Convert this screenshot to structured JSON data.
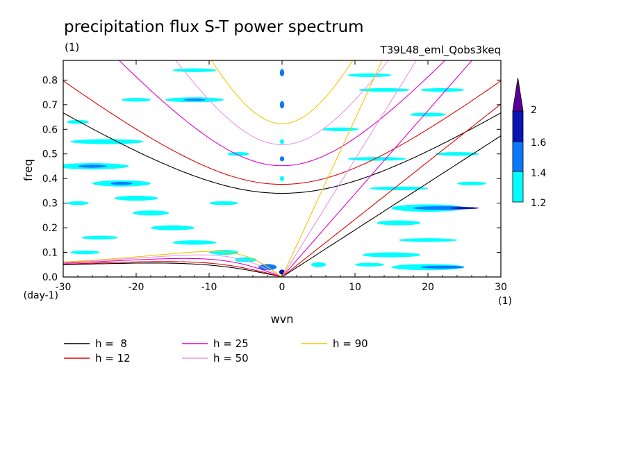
{
  "chart_data": {
    "type": "heatmap",
    "title": "precipitation flux S-T power spectrum",
    "subtitle_left": "(1)",
    "subtitle_right": "T39L48_eml_Qobs3keq",
    "xlabel": "wvn",
    "ylabel": "freq",
    "x_unit": "(1)",
    "y_unit": "(day-1)",
    "xlim": [
      -30,
      30
    ],
    "ylim": [
      0,
      0.88
    ],
    "x_ticks": [
      -30,
      -20,
      -10,
      0,
      10,
      20,
      30
    ],
    "x_tick_labels": [
      "-30",
      "-20",
      "-10",
      "0",
      "10",
      "20",
      "30"
    ],
    "y_ticks": [
      0,
      0.1,
      0.2,
      0.3,
      0.4,
      0.5,
      0.6,
      0.7,
      0.8
    ],
    "y_tick_labels": [
      "0.0",
      "0.1",
      "0.2",
      "0.3",
      "0.4",
      "0.5",
      "0.6",
      "0.7",
      "0.8"
    ],
    "colorbar": {
      "levels": [
        1.2,
        1.4,
        1.6,
        2
      ],
      "labels": [
        "1.2",
        "1.4",
        "1.6",
        "2"
      ],
      "colors": [
        "#00ffff",
        "#0a78ff",
        "#0a14b4",
        "#5a0096"
      ]
    },
    "contour_regions": [
      {
        "x": 0,
        "y": 0.02,
        "w": 0.8,
        "h": 0.02,
        "level": 3
      },
      {
        "x": -2,
        "y": 0.04,
        "w": 2.5,
        "h": 0.025,
        "level": 2
      },
      {
        "x": -5,
        "y": 0.07,
        "w": 3,
        "h": 0.02,
        "level": 1
      },
      {
        "x": -8,
        "y": 0.1,
        "w": 4,
        "h": 0.02,
        "level": 1
      },
      {
        "x": -12,
        "y": 0.14,
        "w": 6,
        "h": 0.018,
        "level": 1
      },
      {
        "x": -15,
        "y": 0.2,
        "w": 6,
        "h": 0.02,
        "level": 1
      },
      {
        "x": -18,
        "y": 0.26,
        "w": 5,
        "h": 0.02,
        "level": 1
      },
      {
        "x": -20,
        "y": 0.32,
        "w": 6,
        "h": 0.02,
        "level": 1
      },
      {
        "x": -22,
        "y": 0.38,
        "w": 8,
        "h": 0.025,
        "level": 1
      },
      {
        "x": -22,
        "y": 0.38,
        "w": 3,
        "h": 0.012,
        "level": 2
      },
      {
        "x": -26,
        "y": 0.45,
        "w": 10,
        "h": 0.025,
        "level": 1
      },
      {
        "x": -26,
        "y": 0.45,
        "w": 4,
        "h": 0.012,
        "level": 2
      },
      {
        "x": -24,
        "y": 0.55,
        "w": 10,
        "h": 0.02,
        "level": 1
      },
      {
        "x": -12,
        "y": 0.72,
        "w": 8,
        "h": 0.02,
        "level": 1
      },
      {
        "x": -12,
        "y": 0.72,
        "w": 3,
        "h": 0.01,
        "level": 2
      },
      {
        "x": -20,
        "y": 0.72,
        "w": 4,
        "h": 0.015,
        "level": 1
      },
      {
        "x": -27,
        "y": 0.1,
        "w": 4,
        "h": 0.015,
        "level": 1
      },
      {
        "x": -25,
        "y": 0.16,
        "w": 5,
        "h": 0.015,
        "level": 1
      },
      {
        "x": -12,
        "y": 0.84,
        "w": 6,
        "h": 0.015,
        "level": 1
      },
      {
        "x": 0,
        "y": 0.83,
        "w": 0.6,
        "h": 0.03,
        "level": 2
      },
      {
        "x": 0,
        "y": 0.7,
        "w": 0.6,
        "h": 0.03,
        "level": 2
      },
      {
        "x": 0,
        "y": 0.55,
        "w": 0.6,
        "h": 0.02,
        "level": 1
      },
      {
        "x": 0,
        "y": 0.48,
        "w": 0.6,
        "h": 0.02,
        "level": 2
      },
      {
        "x": 0,
        "y": 0.4,
        "w": 0.6,
        "h": 0.02,
        "level": 1
      },
      {
        "x": 12,
        "y": 0.82,
        "w": 6,
        "h": 0.015,
        "level": 1
      },
      {
        "x": 14,
        "y": 0.76,
        "w": 7,
        "h": 0.015,
        "level": 1
      },
      {
        "x": 8,
        "y": 0.6,
        "w": 5,
        "h": 0.015,
        "level": 1
      },
      {
        "x": 22,
        "y": 0.76,
        "w": 6,
        "h": 0.015,
        "level": 1
      },
      {
        "x": 20,
        "y": 0.66,
        "w": 5,
        "h": 0.015,
        "level": 1
      },
      {
        "x": 13,
        "y": 0.48,
        "w": 8,
        "h": 0.015,
        "level": 1
      },
      {
        "x": 24,
        "y": 0.5,
        "w": 6,
        "h": 0.015,
        "level": 1
      },
      {
        "x": 16,
        "y": 0.36,
        "w": 8,
        "h": 0.015,
        "level": 1
      },
      {
        "x": 26,
        "y": 0.38,
        "w": 4,
        "h": 0.015,
        "level": 1
      },
      {
        "x": 20,
        "y": 0.28,
        "w": 10,
        "h": 0.03,
        "level": 1
      },
      {
        "x": 22,
        "y": 0.28,
        "w": 8,
        "h": 0.015,
        "level": 2
      },
      {
        "x": 25,
        "y": 0.28,
        "w": 4,
        "h": 0.008,
        "level": 3
      },
      {
        "x": 16,
        "y": 0.22,
        "w": 6,
        "h": 0.02,
        "level": 1
      },
      {
        "x": 20,
        "y": 0.15,
        "w": 8,
        "h": 0.015,
        "level": 1
      },
      {
        "x": 15,
        "y": 0.09,
        "w": 8,
        "h": 0.02,
        "level": 1
      },
      {
        "x": 20,
        "y": 0.04,
        "w": 10,
        "h": 0.025,
        "level": 1
      },
      {
        "x": 22,
        "y": 0.04,
        "w": 6,
        "h": 0.012,
        "level": 2
      },
      {
        "x": 12,
        "y": 0.05,
        "w": 4,
        "h": 0.015,
        "level": 1
      },
      {
        "x": 5,
        "y": 0.05,
        "w": 2,
        "h": 0.02,
        "level": 1
      },
      {
        "x": -28,
        "y": 0.63,
        "w": 3,
        "h": 0.015,
        "level": 1
      },
      {
        "x": -28,
        "y": 0.3,
        "w": 3,
        "h": 0.015,
        "level": 1
      },
      {
        "x": -8,
        "y": 0.3,
        "w": 4,
        "h": 0.015,
        "level": 1
      },
      {
        "x": -6,
        "y": 0.5,
        "w": 3,
        "h": 0.015,
        "level": 1
      }
    ],
    "series": [
      {
        "name": "h =  8",
        "h": 8,
        "color": "#000000"
      },
      {
        "name": "h = 12",
        "h": 12,
        "color": "#e00000"
      },
      {
        "name": "h = 25",
        "h": 25,
        "color": "#e000c8"
      },
      {
        "name": "h = 50",
        "h": 50,
        "color": "#e896e8"
      },
      {
        "name": "h = 90",
        "h": 90,
        "color": "#f0c800"
      }
    ],
    "legend_position": "bottom"
  }
}
